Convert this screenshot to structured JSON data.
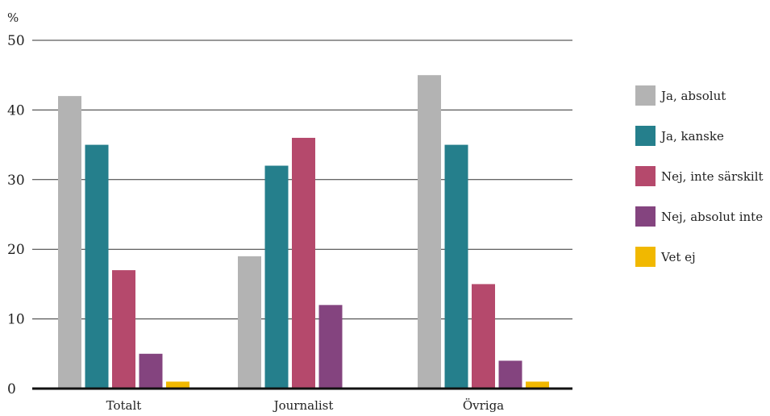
{
  "chart_data": {
    "type": "bar",
    "unit_label": "%",
    "categories": [
      "Totalt",
      "Journalist",
      "Övriga"
    ],
    "ylim": [
      0,
      50
    ],
    "yticks": [
      0,
      10,
      20,
      30,
      40,
      50
    ],
    "grid": true,
    "legend_position": "right",
    "series": [
      {
        "name": "Ja, absolut",
        "color": "#b3b3b3",
        "values": [
          42,
          19,
          45
        ]
      },
      {
        "name": "Ja, kanske",
        "color": "#257f8c",
        "values": [
          35,
          32,
          35
        ]
      },
      {
        "name": "Nej, inte särskilt",
        "color": "#b5496c",
        "values": [
          17,
          36,
          15
        ]
      },
      {
        "name": "Nej, absolut inte",
        "color": "#84447f",
        "values": [
          5,
          12,
          4
        ]
      },
      {
        "name": "Vet ej",
        "color": "#f1b800",
        "values": [
          1,
          0,
          1
        ]
      }
    ]
  }
}
